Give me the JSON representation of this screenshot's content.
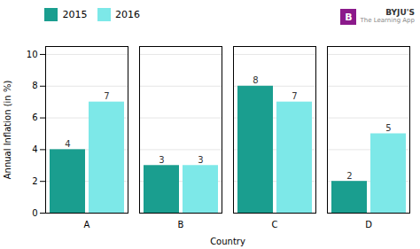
{
  "chart_data": {
    "type": "bar",
    "categories": [
      "A",
      "B",
      "C",
      "D"
    ],
    "series": [
      {
        "name": "2015",
        "color": "#1a9e8f",
        "values": [
          4,
          3,
          8,
          2
        ]
      },
      {
        "name": "2016",
        "color": "#7de8e8",
        "values": [
          7,
          3,
          7,
          5
        ]
      }
    ],
    "xlabel": "Country",
    "ylabel": "Annual Inflation (in %)",
    "ylim": [
      0,
      10.5
    ],
    "yticks": [
      0,
      2,
      4,
      6,
      8,
      10
    ],
    "grid": true,
    "legend": "top",
    "data_labels": true,
    "annotations": [
      "BYJU'S",
      "The Learning App",
      "B"
    ]
  }
}
